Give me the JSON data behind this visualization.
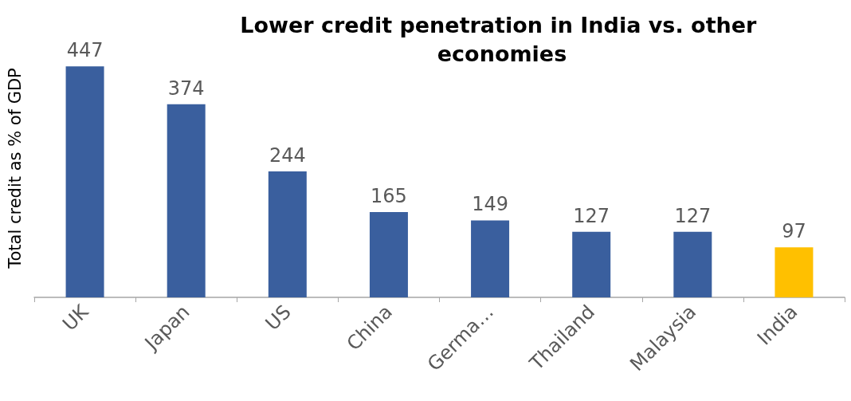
{
  "chart_data": {
    "type": "bar",
    "title": "Lower credit penetration in India vs. other economies",
    "ylabel": "Total credit as % of GDP",
    "categories": [
      "UK",
      "Japan",
      "US",
      "China",
      "Germa…",
      "Thailand",
      "Malaysia",
      "India"
    ],
    "values": [
      447,
      374,
      244,
      165,
      149,
      127,
      127,
      97
    ],
    "colors": [
      "#3a5f9e",
      "#3a5f9e",
      "#3a5f9e",
      "#3a5f9e",
      "#3a5f9e",
      "#3a5f9e",
      "#3a5f9e",
      "#ffc000"
    ],
    "data_labels": true
  }
}
